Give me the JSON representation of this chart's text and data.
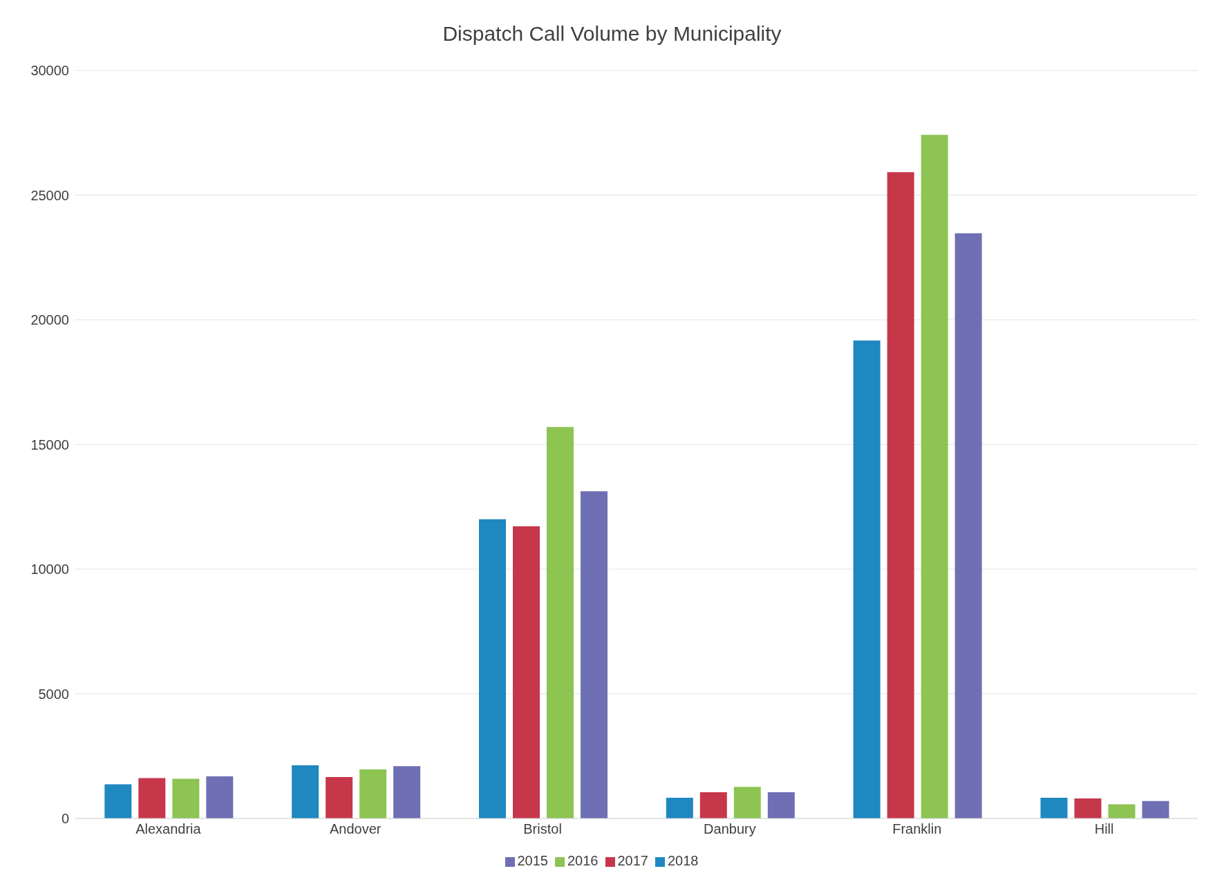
{
  "chart_data": {
    "type": "bar",
    "title": "Dispatch Call Volume by Municipality",
    "categories": [
      "Alexandria",
      "Andover",
      "Bristol",
      "Danbury",
      "Franklin",
      "Hill"
    ],
    "series": [
      {
        "name": "2018",
        "color": "#1f88c0",
        "values": [
          1370,
          2130,
          12000,
          830,
          19170,
          830
        ]
      },
      {
        "name": "2017",
        "color": "#c7374a",
        "values": [
          1620,
          1660,
          11720,
          1050,
          25920,
          800
        ]
      },
      {
        "name": "2016",
        "color": "#8dc452",
        "values": [
          1590,
          1970,
          15700,
          1270,
          27420,
          570
        ]
      },
      {
        "name": "2015",
        "color": "#6f6fb5",
        "values": [
          1690,
          2100,
          13120,
          1050,
          23470,
          700
        ]
      }
    ],
    "ylim": [
      0,
      30000
    ],
    "yticks": [
      0,
      5000,
      10000,
      15000,
      20000,
      25000,
      30000
    ],
    "grid": "y",
    "legend": "bottom"
  }
}
